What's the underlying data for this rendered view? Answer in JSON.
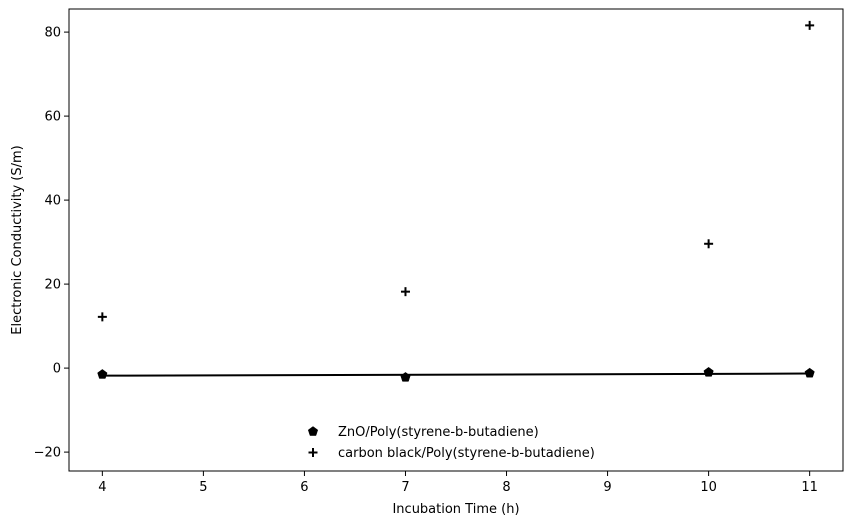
{
  "chart_data": {
    "type": "scatter",
    "title": "",
    "xlabel": "Incubation Time (h)",
    "ylabel": "Electronic Conductivity (S/m)",
    "xlim": [
      3.67,
      11.33
    ],
    "ylim": [
      -24.5,
      85.5
    ],
    "xticks": [
      4,
      5,
      6,
      7,
      8,
      9,
      10,
      11
    ],
    "yticks": [
      -20,
      0,
      20,
      40,
      60,
      80
    ],
    "xtick_labels": [
      "4",
      "5",
      "6",
      "7",
      "8",
      "9",
      "10",
      "11"
    ],
    "ytick_labels": [
      "−20",
      "0",
      "20",
      "40",
      "60",
      "80"
    ],
    "grid": false,
    "legend_position": "lower-center",
    "series": [
      {
        "name": "ZnO/Poly(styrene-b-butadiene)",
        "marker": "pentagon",
        "color": "#000000",
        "x": [
          4,
          7,
          10,
          11
        ],
        "y": [
          -1.5,
          -2.2,
          -1.0,
          -1.2
        ]
      },
      {
        "name": "carbon black/Poly(styrene-b-butadiene)",
        "marker": "plus",
        "color": "#000000",
        "x": [
          4,
          7,
          10,
          11
        ],
        "y": [
          12.2,
          18.2,
          29.6,
          81.6
        ]
      }
    ],
    "fit_line": {
      "series": "ZnO/Poly(styrene-b-butadiene)",
      "color": "#000000",
      "x": [
        4,
        11
      ],
      "y": [
        -1.8,
        -1.3
      ]
    }
  }
}
